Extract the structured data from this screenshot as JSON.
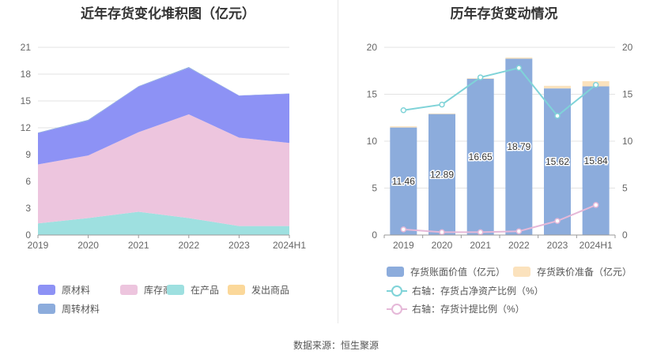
{
  "left_title": "近年存货变化堆积图（亿元）",
  "right_title": "历年存货变动情况",
  "source": "数据来源：恒生聚源",
  "colors": {
    "原材料": "#8d92f5",
    "库存商品": "#edc5de",
    "在产品": "#9ee0e0",
    "发出商品": "#fbd89a",
    "周转材料": "#8cacdc",
    "bar": "#8cacdc",
    "reserve": "#fbe2bd",
    "line1": "#7fd3d8",
    "line2": "#e5b8d8"
  },
  "chart_data": [
    {
      "type": "area",
      "title": "近年存货变化堆积图（亿元）",
      "stacked": true,
      "categories": [
        "2019",
        "2020",
        "2021",
        "2022",
        "2023",
        "2024H1"
      ],
      "ylim": [
        0,
        21
      ],
      "yticks": [
        "0",
        "3",
        "6",
        "9",
        "12",
        "15",
        "18",
        "21"
      ],
      "grid": true,
      "legend_position": "bottom",
      "series": [
        {
          "name": "在产品",
          "values": [
            1.3,
            1.9,
            2.6,
            1.9,
            1.0,
            1.0
          ]
        },
        {
          "name": "库存商品",
          "values": [
            6.6,
            7.0,
            8.9,
            11.6,
            9.9,
            9.3
          ]
        },
        {
          "name": "原材料",
          "values": [
            3.5,
            3.9,
            5.1,
            5.2,
            4.7,
            5.5
          ]
        },
        {
          "name": "发出商品",
          "values": [
            0,
            0,
            0,
            0,
            0,
            0
          ]
        },
        {
          "name": "周转材料",
          "values": [
            0.06,
            0.09,
            0.05,
            0.09,
            0.02,
            0.04
          ]
        }
      ],
      "legend": [
        "原材料",
        "库存商品",
        "在产品",
        "发出商品",
        "周转材料"
      ]
    },
    {
      "type": "bar",
      "title": "历年存货变动情况",
      "categories": [
        "2019",
        "2020",
        "2021",
        "2022",
        "2023",
        "2024H1"
      ],
      "ylim": [
        0,
        20
      ],
      "yticks": [
        "0",
        "5",
        "10",
        "15",
        "20"
      ],
      "y2lim": [
        0,
        20
      ],
      "y2ticks": [
        "0",
        "5",
        "10",
        "15",
        "20"
      ],
      "grid": true,
      "legend_position": "bottom",
      "series": [
        {
          "name": "存货账面价值（亿元）",
          "type": "bar",
          "values": [
            11.46,
            12.89,
            16.65,
            18.79,
            15.62,
            15.84
          ],
          "labels": [
            "11.46",
            "12.89",
            "16.65",
            "18.79",
            "15.62",
            "15.84"
          ]
        },
        {
          "name": "存货跌价准备（亿元）",
          "type": "bar",
          "stacked": true,
          "values": [
            0.12,
            0.06,
            0.06,
            0.12,
            0.28,
            0.55
          ]
        },
        {
          "name": "右轴：存货占净资产比例（%）",
          "type": "line",
          "axis": "right",
          "values": [
            13.3,
            13.9,
            16.8,
            17.8,
            12.7,
            16.0
          ]
        },
        {
          "name": "右轴：存货计提比例（%）",
          "type": "line",
          "axis": "right",
          "values": [
            0.6,
            0.3,
            0.3,
            0.4,
            1.5,
            3.2
          ]
        }
      ]
    }
  ]
}
